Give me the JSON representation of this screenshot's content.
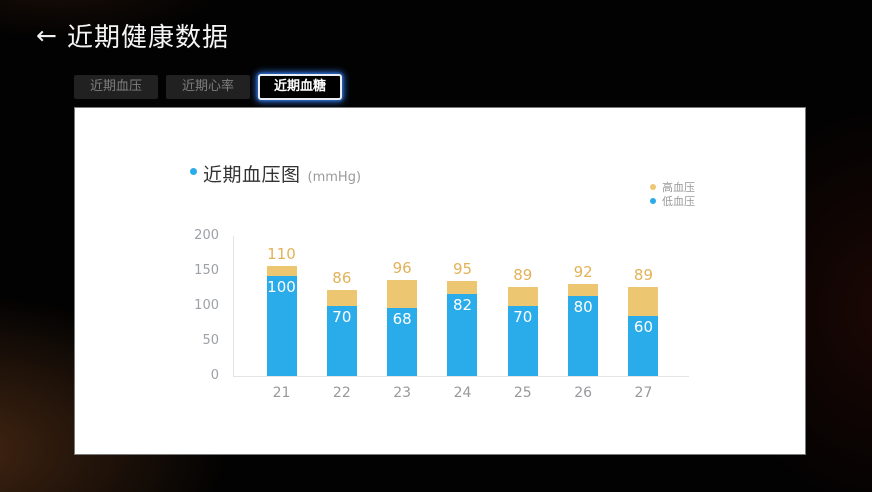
{
  "header": {
    "back_icon": "←",
    "title": "近期健康数据"
  },
  "tabs": [
    {
      "name": "recent-blood-pressure",
      "label": "近期血压",
      "active": false
    },
    {
      "name": "recent-heart-rate",
      "label": "近期心率",
      "active": false
    },
    {
      "name": "recent-blood-sugar",
      "label": "近期血糖",
      "active": true
    }
  ],
  "card": {
    "chart_title": "近期血压图",
    "chart_unit": "(mmHg)"
  },
  "colors": {
    "accent_blue": "#29ace9",
    "bar_high": "#edc672",
    "bar_low": "#29ace9",
    "high_label_text": "#e2b259",
    "axis_text": "#9da1a6",
    "legend_text": "#999999",
    "tab_glow": "#2f6fd3"
  },
  "chart_data": {
    "type": "bar",
    "title": "近期血压图",
    "unit": "mmHg",
    "categories": [
      "21",
      "22",
      "23",
      "24",
      "25",
      "26",
      "27"
    ],
    "series": [
      {
        "name": "高血压",
        "values": [
          110,
          86,
          96,
          95,
          89,
          92,
          89
        ],
        "color": "#edc672"
      },
      {
        "name": "低血压",
        "values": [
          100,
          70,
          68,
          82,
          70,
          80,
          60
        ],
        "color": "#29ace9"
      }
    ],
    "ylim": [
      0,
      200
    ],
    "yticks": [
      0,
      50,
      100,
      150,
      200
    ],
    "grid": false,
    "legend_position": "top-right",
    "bar_style": "overlay-stacked",
    "value_labels": "high-above-bar, low-inside-bar"
  }
}
